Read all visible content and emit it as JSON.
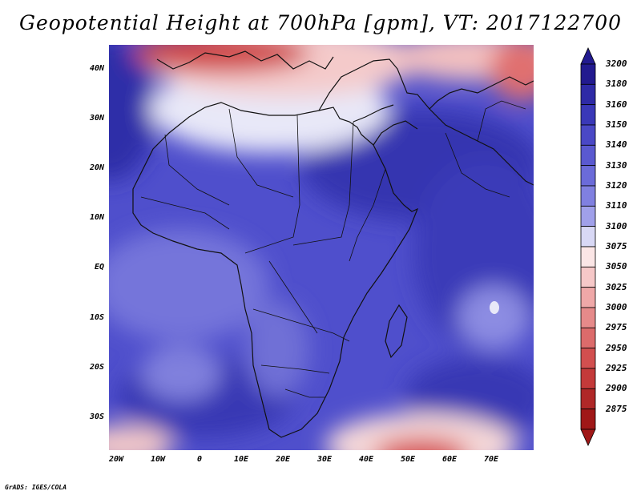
{
  "title": "Geopotential Height at 700hPa [gpm], VT: 2017122700",
  "credit": "GrADS: IGES/COLA",
  "lat_labels": [
    "40N",
    "30N",
    "20N",
    "10N",
    "EQ",
    "10S",
    "20S",
    "30S"
  ],
  "lon_labels": [
    "20W",
    "10W",
    "0",
    "10E",
    "20E",
    "30E",
    "40E",
    "50E",
    "60E",
    "70E"
  ],
  "colorbar": {
    "levels": [
      "3200",
      "3180",
      "3160",
      "3150",
      "3140",
      "3130",
      "3120",
      "3110",
      "3100",
      "3075",
      "3050",
      "3025",
      "3000",
      "2975",
      "2950",
      "2925",
      "2900",
      "2875"
    ],
    "colors": [
      "#221a8f",
      "#2e2aa6",
      "#3a38b8",
      "#4a48c6",
      "#5a59d0",
      "#6b6bd9",
      "#8080e0",
      "#a0a0ea",
      "#d8d8f5",
      "#fbe6e6",
      "#f6c8c8",
      "#efa8a8",
      "#e68a8a",
      "#dc6b6b",
      "#d24f4f",
      "#c43a3a",
      "#b02828",
      "#a01818"
    ]
  }
}
